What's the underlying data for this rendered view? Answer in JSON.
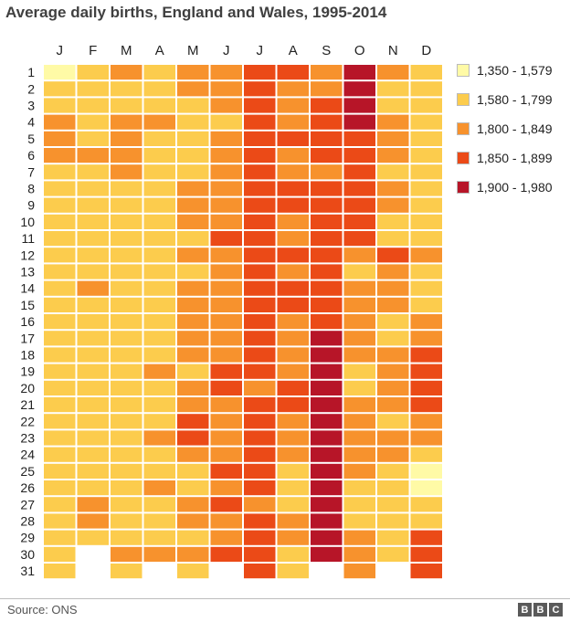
{
  "title": "Average daily births, England and Wales, 1995-2014",
  "source": "Source: ONS",
  "logo": [
    "B",
    "B",
    "C"
  ],
  "legend": [
    {
      "label": "1,350 - 1,579",
      "color": "#FFFAA6"
    },
    {
      "label": "1,580 - 1,799",
      "color": "#FCCC4D"
    },
    {
      "label": "1,800 - 1,849",
      "color": "#F7922D"
    },
    {
      "label": "1,850 - 1,899",
      "color": "#EB4A17"
    },
    {
      "label": "1,900 - 1,980",
      "color": "#B71528"
    }
  ],
  "chart_data": {
    "type": "heatmap",
    "title": "Average daily births, England and Wales, 1995-2014",
    "columns": [
      "J",
      "F",
      "M",
      "A",
      "M",
      "J",
      "J",
      "A",
      "S",
      "O",
      "N",
      "D"
    ],
    "rows": [
      "1",
      "2",
      "3",
      "4",
      "5",
      "6",
      "7",
      "8",
      "9",
      "10",
      "11",
      "12",
      "13",
      "14",
      "15",
      "16",
      "17",
      "18",
      "19",
      "20",
      "21",
      "22",
      "23",
      "24",
      "25",
      "26",
      "27",
      "28",
      "29",
      "30",
      "31"
    ],
    "cell_values": "birth-range class index per cell: 0 = 1,350 - 1,579, 1 = 1,580 - 1,799, 2 = 1,800 - 1,849, 3 = 1,850 - 1,899, 4 = 1,900 - 1,980; null = no such date",
    "classes": [
      [
        0,
        1,
        2,
        1,
        2,
        2,
        3,
        3,
        2,
        4,
        2,
        1
      ],
      [
        1,
        1,
        1,
        1,
        2,
        2,
        3,
        2,
        2,
        4,
        1,
        1
      ],
      [
        1,
        1,
        1,
        1,
        1,
        2,
        3,
        2,
        3,
        4,
        1,
        1
      ],
      [
        2,
        1,
        2,
        2,
        1,
        1,
        3,
        2,
        3,
        4,
        2,
        1
      ],
      [
        2,
        1,
        2,
        1,
        1,
        2,
        3,
        3,
        3,
        3,
        2,
        1
      ],
      [
        2,
        2,
        2,
        1,
        1,
        2,
        3,
        2,
        3,
        3,
        2,
        1
      ],
      [
        1,
        1,
        2,
        1,
        1,
        2,
        3,
        2,
        2,
        3,
        1,
        1
      ],
      [
        1,
        1,
        1,
        1,
        2,
        2,
        3,
        3,
        3,
        3,
        2,
        1
      ],
      [
        1,
        1,
        1,
        1,
        2,
        2,
        3,
        3,
        3,
        3,
        2,
        1
      ],
      [
        1,
        1,
        1,
        1,
        2,
        2,
        3,
        2,
        3,
        3,
        1,
        1
      ],
      [
        1,
        1,
        1,
        1,
        1,
        3,
        3,
        2,
        3,
        3,
        1,
        1
      ],
      [
        1,
        1,
        1,
        1,
        2,
        2,
        3,
        3,
        3,
        2,
        3,
        2
      ],
      [
        1,
        1,
        1,
        1,
        1,
        2,
        3,
        2,
        3,
        1,
        2,
        1
      ],
      [
        1,
        2,
        1,
        1,
        2,
        2,
        3,
        3,
        3,
        2,
        2,
        1
      ],
      [
        1,
        1,
        1,
        1,
        2,
        2,
        3,
        3,
        3,
        2,
        2,
        1
      ],
      [
        1,
        1,
        1,
        1,
        2,
        2,
        3,
        2,
        3,
        2,
        1,
        2
      ],
      [
        1,
        1,
        1,
        1,
        2,
        2,
        3,
        2,
        4,
        2,
        1,
        2
      ],
      [
        1,
        1,
        1,
        1,
        2,
        2,
        3,
        2,
        4,
        2,
        2,
        3
      ],
      [
        1,
        1,
        1,
        2,
        1,
        3,
        3,
        2,
        4,
        1,
        2,
        3
      ],
      [
        1,
        1,
        1,
        1,
        2,
        3,
        2,
        3,
        4,
        1,
        2,
        3
      ],
      [
        1,
        1,
        1,
        1,
        2,
        2,
        3,
        3,
        4,
        2,
        2,
        3
      ],
      [
        1,
        1,
        1,
        1,
        3,
        2,
        3,
        2,
        4,
        2,
        1,
        2
      ],
      [
        1,
        1,
        1,
        2,
        3,
        2,
        3,
        2,
        4,
        2,
        2,
        2
      ],
      [
        1,
        1,
        1,
        1,
        2,
        2,
        3,
        2,
        4,
        2,
        2,
        1
      ],
      [
        1,
        1,
        1,
        1,
        1,
        3,
        3,
        1,
        4,
        2,
        1,
        0
      ],
      [
        1,
        1,
        1,
        2,
        1,
        2,
        3,
        1,
        4,
        1,
        1,
        0
      ],
      [
        1,
        2,
        1,
        1,
        2,
        3,
        2,
        1,
        4,
        1,
        1,
        1
      ],
      [
        1,
        2,
        1,
        1,
        2,
        2,
        3,
        2,
        4,
        1,
        1,
        1
      ],
      [
        1,
        1,
        1,
        1,
        1,
        2,
        3,
        2,
        4,
        2,
        1,
        3
      ],
      [
        1,
        null,
        2,
        2,
        2,
        3,
        3,
        1,
        4,
        2,
        1,
        3
      ],
      [
        1,
        null,
        1,
        null,
        1,
        null,
        3,
        1,
        null,
        2,
        null,
        3
      ]
    ]
  }
}
